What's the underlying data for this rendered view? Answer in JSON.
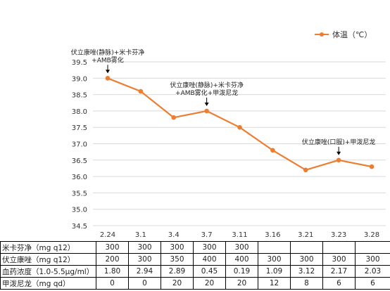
{
  "chart_data": {
    "type": "line",
    "categories": [
      "2.24",
      "3.1",
      "3.4",
      "3.7",
      "3.11",
      "3.16",
      "3.21",
      "3.23",
      "3.28"
    ],
    "series": [
      {
        "name": "体温（℃）",
        "values": [
          39.0,
          38.6,
          37.8,
          38.0,
          37.5,
          36.8,
          36.2,
          36.5,
          36.3
        ]
      }
    ],
    "ylim": [
      34.5,
      39.5
    ],
    "yticks": [
      "34.5",
      "35.0",
      "35.5",
      "36.0",
      "36.5",
      "37.0",
      "37.5",
      "38.0",
      "38.5",
      "39.0",
      "39.5"
    ],
    "grid": "horizontal",
    "legend_position": "top-right",
    "line_color": "#ED7D31",
    "annotations": [
      {
        "index": 0,
        "lines": [
          "伏立康唑(静脉)+米卡芬净",
          "+AMB雾化"
        ]
      },
      {
        "index": 3,
        "lines": [
          "伏立康唑(静脉)+米卡芬净",
          "+AMB雾化+甲泼尼龙"
        ]
      },
      {
        "index": 7,
        "lines": [
          "伏立康唑(口服)+甲泼尼龙"
        ]
      }
    ]
  },
  "table": {
    "rows": [
      {
        "label": "米卡芬净（mg q12）",
        "values": [
          "300",
          "300",
          "300",
          "300",
          "300",
          "",
          "",
          "",
          ""
        ]
      },
      {
        "label": "伏立康唑（mg q12）",
        "values": [
          "200",
          "300",
          "350",
          "400",
          "400",
          "300",
          "300",
          "300",
          "300"
        ]
      },
      {
        "label": "血药浓度（1.0-5.5μg/ml）",
        "values": [
          "1.80",
          "2.94",
          "2.89",
          "0.45",
          "0.19",
          "1.09",
          "3.12",
          "2.17",
          "2.03"
        ]
      },
      {
        "label": "甲泼尼龙（mg qd）",
        "values": [
          "0",
          "0",
          "20",
          "20",
          "20",
          "12",
          "8",
          "6",
          "6"
        ]
      }
    ]
  }
}
